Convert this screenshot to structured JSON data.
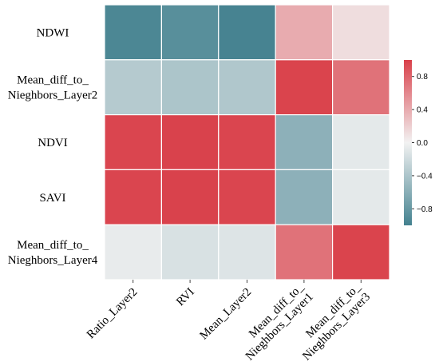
{
  "chart_data": {
    "type": "heatmap",
    "title": "",
    "xlabel": "",
    "ylabel": "",
    "rows": [
      "NDWI",
      "Mean_diff_to_\nNieghbors_Layer2",
      "NDVI",
      "SAVI",
      "Mean_diff_to_\nNieghbors_Layer4"
    ],
    "columns": [
      "Ratio_Layer2",
      "RVI",
      "Mean_Layer2",
      "Mean_diff_to_\nNieghbors_Layer1",
      "Mean_diff_to_\nNieghbors_Layer3"
    ],
    "values": [
      [
        -0.95,
        -0.88,
        -0.98,
        0.4,
        0.12
      ],
      [
        -0.35,
        -0.4,
        -0.38,
        0.98,
        0.72
      ],
      [
        0.97,
        0.99,
        0.97,
        -0.58,
        -0.08
      ],
      [
        0.97,
        0.99,
        0.97,
        -0.58,
        -0.08
      ],
      [
        -0.06,
        -0.15,
        -0.12,
        0.72,
        0.98
      ]
    ],
    "colorbar": {
      "ticks": [
        0.8,
        0.4,
        0.0,
        -0.4,
        -0.8
      ],
      "tick_labels": [
        "0.8",
        "0.4",
        "0.0",
        "−0.4",
        "−0.8"
      ],
      "range": [
        -1,
        1
      ]
    },
    "colors": {
      "negative": "#43818f",
      "neutral": "#f2f2f2",
      "positive": "#d9404a"
    },
    "grid": "white cell borders",
    "legend": "colorbar right"
  }
}
